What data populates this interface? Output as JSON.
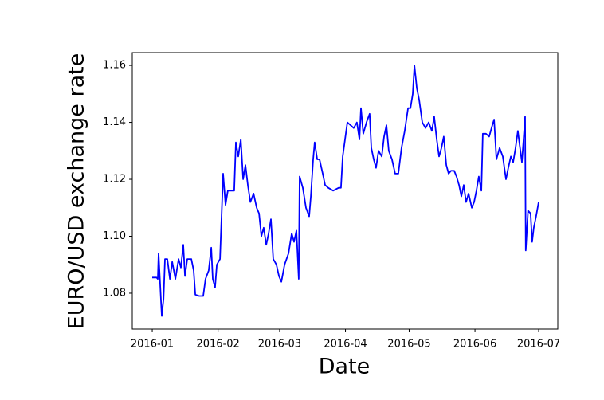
{
  "chart_data": {
    "type": "line",
    "xlabel": "Date",
    "ylabel": "EURO/USD exchange rate",
    "color": "#0000ff",
    "x": [
      0,
      2.0,
      2.6,
      3.0,
      4.5,
      5.3,
      6.0,
      7.1,
      8.3,
      9.4,
      10.9,
      12.4,
      13.5,
      14.6,
      15.4,
      16.5,
      18.4,
      19.5,
      20.3,
      22.1,
      24.0,
      25.1,
      26.6,
      27.8,
      28.5,
      29.6,
      30.4,
      31.9,
      33.4,
      34.5,
      35.6,
      37.1,
      38.6,
      39.4,
      40.5,
      41.7,
      42.8,
      43.9,
      45.0,
      46.2,
      47.7,
      49.2,
      50.3,
      51.4,
      52.5,
      53.7,
      54.8,
      55.9,
      57.0,
      58.5,
      59.7,
      60.8,
      62.3,
      64.2,
      65.7,
      66.8,
      67.9,
      69.0,
      69.4,
      70.9,
      72.4,
      73.9,
      74.7,
      75.8,
      76.5,
      77.7,
      78.8,
      80.3,
      81.4,
      82.9,
      85.2,
      87.8,
      88.9,
      89.7,
      90.8,
      91.9,
      93.4,
      94.9,
      96.4,
      97.6,
      98.3,
      99.4,
      100.9,
      102.4,
      103.2,
      104.3,
      105.4,
      106.6,
      108.1,
      109.2,
      110.3,
      111.4,
      112.9,
      114.4,
      115.9,
      117.4,
      118.9,
      120.5,
      121.6,
      122.7,
      123.5,
      124.6,
      125.7,
      127.2,
      128.7,
      130.2,
      131.7,
      132.8,
      134.0,
      135.1,
      136.2,
      137.3,
      138.5,
      139.6,
      140.7,
      142.2,
      143.3,
      144.5,
      145.6,
      146.7,
      147.8,
      149.0,
      150.5,
      151.6,
      152.7,
      153.8,
      155.0,
      155.7,
      157.2,
      158.7,
      160.2,
      161.0,
      162.1,
      163.6,
      165.1,
      166.6,
      167.7,
      168.9,
      170.0,
      171.1,
      172.2,
      173.4,
      174.1,
      174.8,
      175.6,
      175.9,
      177.0,
      178.2,
      178.9,
      179.7,
      180.8,
      182.0
    ],
    "values": [
      1.0855,
      1.0855,
      1.085,
      1.094,
      1.072,
      1.078,
      1.092,
      1.092,
      1.085,
      1.091,
      1.085,
      1.092,
      1.089,
      1.097,
      1.086,
      1.092,
      1.092,
      1.088,
      1.0795,
      1.079,
      1.079,
      1.085,
      1.088,
      1.096,
      1.085,
      1.082,
      1.09,
      1.092,
      1.122,
      1.111,
      1.116,
      1.116,
      1.116,
      1.133,
      1.128,
      1.134,
      1.12,
      1.125,
      1.118,
      1.112,
      1.115,
      1.11,
      1.108,
      1.1,
      1.103,
      1.097,
      1.101,
      1.106,
      1.092,
      1.09,
      1.086,
      1.084,
      1.09,
      1.094,
      1.101,
      1.098,
      1.102,
      1.085,
      1.121,
      1.117,
      1.11,
      1.107,
      1.114,
      1.127,
      1.133,
      1.127,
      1.127,
      1.122,
      1.118,
      1.117,
      1.116,
      1.117,
      1.117,
      1.128,
      1.134,
      1.14,
      1.139,
      1.138,
      1.14,
      1.134,
      1.145,
      1.136,
      1.14,
      1.143,
      1.131,
      1.127,
      1.124,
      1.13,
      1.128,
      1.135,
      1.139,
      1.13,
      1.127,
      1.122,
      1.122,
      1.131,
      1.137,
      1.145,
      1.145,
      1.15,
      1.16,
      1.152,
      1.148,
      1.14,
      1.138,
      1.14,
      1.137,
      1.142,
      1.134,
      1.128,
      1.131,
      1.135,
      1.125,
      1.122,
      1.123,
      1.123,
      1.121,
      1.118,
      1.114,
      1.118,
      1.112,
      1.115,
      1.11,
      1.112,
      1.116,
      1.121,
      1.116,
      1.136,
      1.136,
      1.135,
      1.139,
      1.141,
      1.127,
      1.131,
      1.128,
      1.12,
      1.124,
      1.128,
      1.126,
      1.131,
      1.137,
      1.13,
      1.126,
      1.133,
      1.142,
      1.095,
      1.109,
      1.108,
      1.098,
      1.103,
      1.107,
      1.112
    ],
    "xlim": [
      -9.4,
      191
    ],
    "xticks": [
      {
        "value": 0,
        "label": "2016-01"
      },
      {
        "value": 31,
        "label": "2016-02"
      },
      {
        "value": 60,
        "label": "2016-03"
      },
      {
        "value": 91,
        "label": "2016-04"
      },
      {
        "value": 121,
        "label": "2016-05"
      },
      {
        "value": 152,
        "label": "2016-06"
      },
      {
        "value": 182,
        "label": "2016-07"
      }
    ],
    "ylim": [
      1.0674,
      1.1645
    ],
    "yticks": [
      1.08,
      {
        "value": 1.1,
        "label": "1.10"
      },
      1.12,
      1.14,
      1.16
    ]
  }
}
